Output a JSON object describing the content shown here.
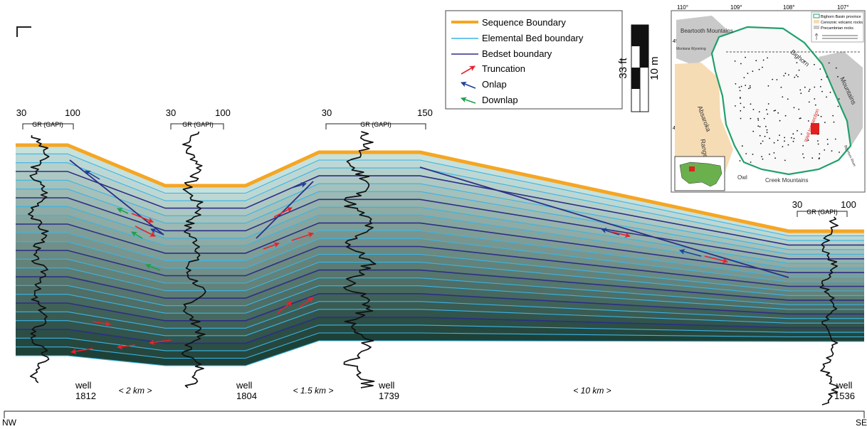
{
  "legend": {
    "items": [
      {
        "label": "Sequence Boundary",
        "color": "#f5a623",
        "kind": "thick-line"
      },
      {
        "label": "Elemental Bed boundary",
        "color": "#3ab4e6",
        "kind": "line"
      },
      {
        "label": "Bedset boundary",
        "color": "#2b2f86",
        "kind": "line"
      },
      {
        "label": "Truncation",
        "color": "#e8232a",
        "kind": "arrow"
      },
      {
        "label": "Onlap",
        "color": "#1f3f9a",
        "kind": "arrow"
      },
      {
        "label": "Downlap",
        "color": "#1ea04a",
        "kind": "arrow"
      }
    ]
  },
  "scale_bar": {
    "left_label": "33 ft",
    "right_label": "10 m"
  },
  "gr_logs": [
    {
      "min": "30",
      "max": "100",
      "title": "GR (GAPI)"
    },
    {
      "min": "30",
      "max": "100",
      "title": "GR (GAPI)"
    },
    {
      "min": "30",
      "max": "150",
      "title": "GR (GAPI)"
    },
    {
      "min": "30",
      "max": "100",
      "title": "GR (GAPI)"
    }
  ],
  "wells": [
    {
      "word": "well",
      "id": "1812"
    },
    {
      "word": "well",
      "id": "1804"
    },
    {
      "word": "well",
      "id": "1739"
    },
    {
      "word": "well",
      "id": "1536"
    }
  ],
  "distances": [
    "< 2 km >",
    "< 1.5 km >",
    "< 10 km >"
  ],
  "axis": {
    "left": "NW",
    "right": "SE"
  },
  "inset_map": {
    "longitudes": [
      "110°",
      "109°",
      "108°",
      "107°"
    ],
    "latitudes": [
      "45°",
      "44°"
    ],
    "legend": [
      "Bighorn Basin province",
      "Cenozoic volcanic rocks",
      "Precambrian rocks"
    ],
    "labels": {
      "beartooth": "Beartooth Mountains",
      "state_line": "Montana Wyoming",
      "absaroka": "Absaroka",
      "range": "Range",
      "bighorn": "Bighorn",
      "mountains": "Mountains",
      "owl": "Owl",
      "creek": "Creek Mountains",
      "section": "Well log section",
      "river": "Big Horn River"
    }
  },
  "colors": {
    "sequence_boundary": "#f5a623",
    "bed_line": "#3ab4e6",
    "bedset_line": "#2b2f86",
    "truncation": "#e8232a",
    "onlap": "#1f3f9a",
    "downlap": "#1ea04a"
  }
}
